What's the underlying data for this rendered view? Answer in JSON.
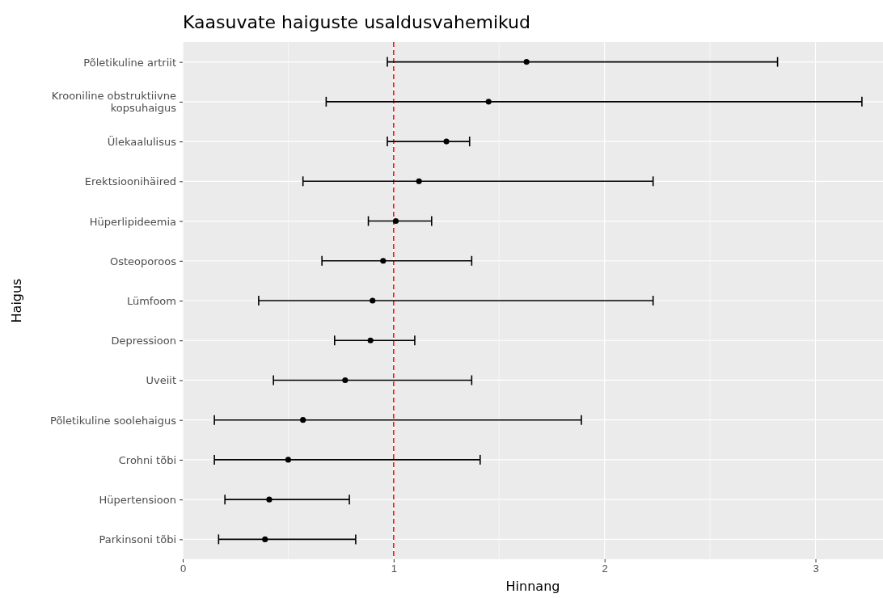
{
  "chart_data": {
    "type": "scatter",
    "orientation": "horizontal",
    "title": "Kaasuvate haiguste usaldusvahemikud",
    "xlabel": "Hinnang",
    "ylabel": "Haigus",
    "categories": [
      "Põletikuline artriit",
      "Krooniline obstruktiivne\nkopsuhaigus",
      "Ülekaalulisus",
      "Erektsioonihäired",
      "Hüperlipideemia",
      "Osteoporoos",
      "Lümfoom",
      "Depressioon",
      "Uveiit",
      "Põletikuline soolehaigus",
      "Crohni tõbi",
      "Hüpertensioon",
      "Parkinsoni tõbi"
    ],
    "color": "#000000",
    "values": [
      1.63,
      1.45,
      1.25,
      1.12,
      1.01,
      0.95,
      0.9,
      0.89,
      0.77,
      0.57,
      0.5,
      0.41,
      0.39
    ],
    "errors": [
      [
        0.97,
        2.82
      ],
      [
        0.68,
        3.22
      ],
      [
        0.97,
        1.36
      ],
      [
        0.57,
        2.23
      ],
      [
        0.88,
        1.18
      ],
      [
        0.66,
        1.37
      ],
      [
        0.36,
        2.23
      ],
      [
        0.72,
        1.1
      ],
      [
        0.43,
        1.37
      ],
      [
        0.15,
        1.89
      ],
      [
        0.15,
        1.41
      ],
      [
        0.2,
        0.79
      ],
      [
        0.17,
        0.82
      ]
    ],
    "xlim": [
      0,
      3.32
    ],
    "xticks": [
      0,
      1,
      2,
      3
    ],
    "grid": true,
    "marker": "circle",
    "ref_lines": [
      {
        "axis": "x",
        "value": 1,
        "color": "#ff0000",
        "line_style": "dashed"
      }
    ]
  }
}
